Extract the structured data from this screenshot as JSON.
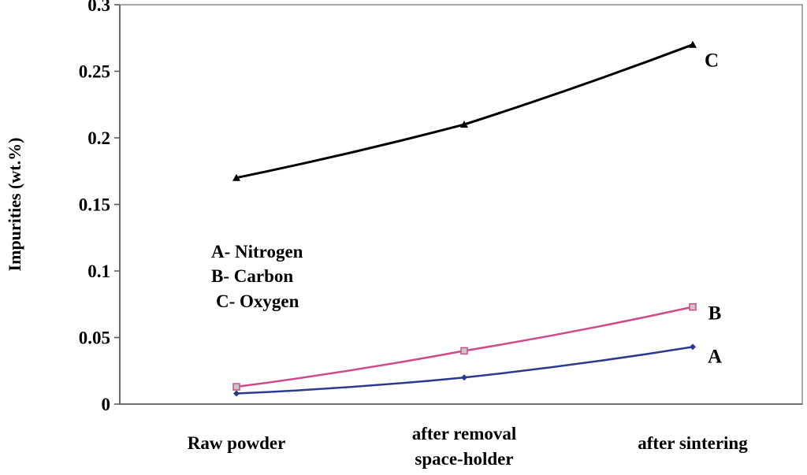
{
  "chart_data": {
    "type": "line",
    "categories": [
      [
        "Raw powder"
      ],
      [
        "after removal",
        "space-holder"
      ],
      [
        "after sintering"
      ]
    ],
    "series": [
      {
        "name": "A",
        "values": [
          0.008,
          0.02,
          0.043
        ],
        "color": "#2b3a8f",
        "marker": "diamond"
      },
      {
        "name": "B",
        "values": [
          0.013,
          0.04,
          0.073
        ],
        "color": "#d04a8a",
        "marker": "square"
      },
      {
        "name": "C",
        "values": [
          0.17,
          0.21,
          0.27
        ],
        "color": "#000000",
        "marker": "triangle"
      }
    ],
    "title": "",
    "xlabel": "",
    "ylabel": "Impurities (wt.%)",
    "ylim": [
      0,
      0.3
    ],
    "yticks": [
      0,
      0.05,
      0.1,
      0.15,
      0.2,
      0.25,
      0.3
    ],
    "ytick_labels": [
      "0",
      "0.05",
      "0.1",
      "0.15",
      "0.2",
      "0.25",
      "0.3"
    ],
    "grid": false,
    "legend": [
      "A- Nitrogen",
      "B- Carbon",
      "C- Oxygen"
    ],
    "legend_position": "center-left"
  }
}
